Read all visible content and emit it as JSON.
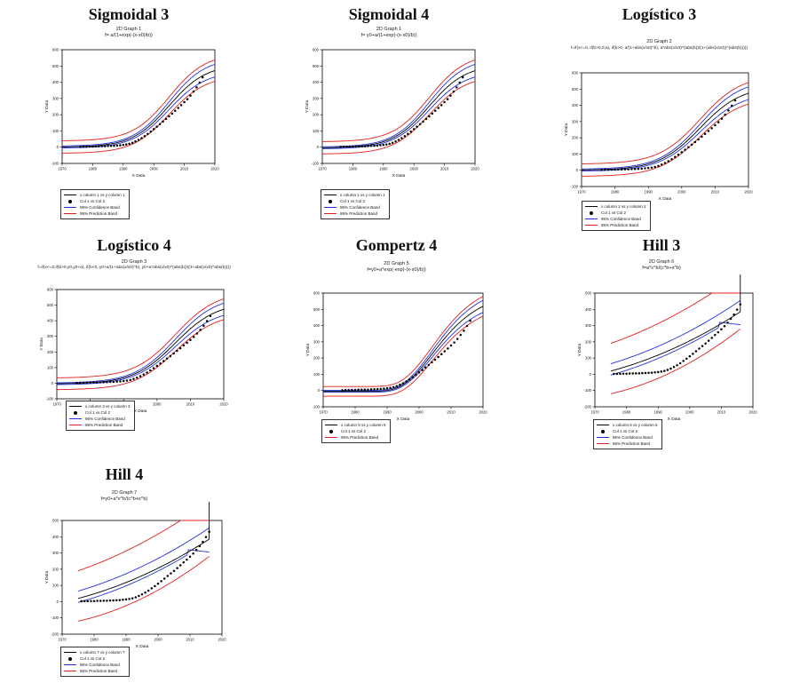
{
  "legend_labels": [
    "x column 1 vs y column 1",
    "Col 1 vs Col 2",
    "95% Confidence Band",
    "95% Prediction Band"
  ],
  "colors": {
    "fit": "#000000",
    "data": "#000000",
    "confidence": "#2233dd",
    "prediction": "#e02020",
    "frame": "#000000"
  },
  "chart_data": [
    {
      "type": "scatter",
      "title": "Sigmoidal 3",
      "graph_title": "2D Graph 1",
      "equation": "f= a/(1+exp(-(x-x0)/b))",
      "xlabel": "X Data",
      "ylabel": "Y Data",
      "xlim": [
        1970,
        2020
      ],
      "ylim": [
        -100,
        600
      ],
      "xticks": [
        1970,
        1980,
        1990,
        2000,
        2010,
        2020
      ],
      "yticks": [
        -100,
        0,
        100,
        200,
        300,
        400,
        500,
        600
      ],
      "model": {
        "kind": "sig3",
        "a": 510,
        "x0": 2005,
        "b": 6
      },
      "conf_halfwidth": 0.07,
      "pred_halfwidth": 38,
      "legend": [
        "x column 1 vs y column 1",
        "Col 1 vs Col 2",
        "95% Confidence Band",
        "95% Prediction Band"
      ]
    },
    {
      "type": "scatter",
      "title": "Sigmoidal 4",
      "graph_title": "2D Graph 1",
      "equation": "f= y0+a/(1+exp(-(x-x0)/b))",
      "xlabel": "X Data",
      "ylabel": "Y Data",
      "xlim": [
        1970,
        2020
      ],
      "ylim": [
        -100,
        600
      ],
      "xticks": [
        1970,
        1980,
        1990,
        2000,
        2010,
        2020
      ],
      "yticks": [
        -100,
        0,
        100,
        200,
        300,
        400,
        500,
        600
      ],
      "model": {
        "kind": "sig4",
        "y0": -5,
        "a": 515,
        "x0": 2005,
        "b": 6
      },
      "conf_halfwidth": 0.07,
      "pred_halfwidth": 38,
      "legend": [
        "x column 1 vs y column 1",
        "Col 1 vs Col 2",
        "95% Confidence Band",
        "95% Prediction Band"
      ]
    },
    {
      "type": "scatter",
      "title": "Logístico 3",
      "graph_title": "2D Graph 2",
      "equation": "f=if(x<=0, if(b>0,0,a), if(b>0, a/(1+abs(x/x0)^b), a*abs(x/x0)^(abs(b))/(1+(abs(x/x0))^(abs(b)))))",
      "xlabel": "X Data",
      "ylabel": "Y Data",
      "xlim": [
        1970,
        2020
      ],
      "ylim": [
        -100,
        600
      ],
      "xticks": [
        1970,
        1980,
        1990,
        2000,
        2010,
        2020
      ],
      "yticks": [
        -100,
        0,
        100,
        200,
        300,
        400,
        500,
        600
      ],
      "model": {
        "kind": "sig3",
        "a": 520,
        "x0": 2005.5,
        "b": 6.2
      },
      "conf_halfwidth": 0.07,
      "pred_halfwidth": 38,
      "legend": [
        "x column 2 vs y column 2",
        "Col 1 vs Col 2",
        "95% Confidence Band",
        "95% Prediction Band"
      ]
    },
    {
      "type": "scatter",
      "title": "Logístico 4",
      "graph_title": "2D Graph 3",
      "equation": "f=if(x<=0,if(b>0,y0,y0+a), if(b<0, y0+a/(1+abs(x/x0)^b), y0+a*abs(x/x0)^(abs(b))/(1+abs(x/x0)^abs(b))))",
      "xlabel": "X Data",
      "ylabel": "Y Data",
      "xlim": [
        1970,
        2020
      ],
      "ylim": [
        -100,
        600
      ],
      "xticks": [
        1970,
        1980,
        1990,
        2000,
        2010,
        2020
      ],
      "yticks": [
        -100,
        0,
        100,
        200,
        300,
        400,
        500,
        600
      ],
      "model": {
        "kind": "sig4",
        "y0": -5,
        "a": 525,
        "x0": 2005.5,
        "b": 6.2
      },
      "conf_halfwidth": 0.07,
      "pred_halfwidth": 38,
      "legend": [
        "x column 3 vs y column 3",
        "Col 1 vs Col 2",
        "95% Confidence Band",
        "95% Prediction Band"
      ]
    },
    {
      "type": "scatter",
      "title": "Gompertz 4",
      "graph_title": "2D Graph 5",
      "equation": "f=y0+a*exp(-exp(-(x-x0)/b))",
      "xlabel": "X Data",
      "ylabel": "Y Data",
      "xlim": [
        1970,
        2020
      ],
      "ylim": [
        -100,
        600
      ],
      "xticks": [
        1970,
        1980,
        1990,
        2000,
        2010,
        2020
      ],
      "yticks": [
        -100,
        0,
        100,
        200,
        300,
        400,
        500,
        600
      ],
      "model": {
        "kind": "gomp",
        "y0": -5,
        "a": 620,
        "x0": 2004,
        "b": 9
      },
      "conf_halfwidth": 0.06,
      "pred_halfwidth": 30,
      "legend": [
        "x column 5 vs y column 5",
        "Col 1 vs Col 2",
        "95% Prediction Band"
      ]
    },
    {
      "type": "scatter",
      "title": "Hill 3",
      "graph_title": "2D Graph 6",
      "equation": "f=a*x^b/(c^b+x^b)",
      "xlabel": "X Data",
      "ylabel": "Y Data",
      "xlim": [
        1970,
        2020
      ],
      "ylim": [
        -200,
        500
      ],
      "xticks": [
        1970,
        1980,
        1990,
        2000,
        2010,
        2020
      ],
      "yticks": [
        -200,
        -100,
        0,
        100,
        200,
        300,
        400,
        500
      ],
      "model": {
        "kind": "hill"
      },
      "legend": [
        "x column 6 vs y column 6",
        "Col 1 vs Col 2",
        "95% Confidence Band",
        "95% Prediction Band"
      ]
    },
    {
      "type": "scatter",
      "title": "Hill 4",
      "graph_title": "2D Graph 7",
      "equation": "f=y0+a*x^b/(c^b+x^b)",
      "xlabel": "X Data",
      "ylabel": "Y Data",
      "xlim": [
        1970,
        2020
      ],
      "ylim": [
        -200,
        500
      ],
      "xticks": [
        1970,
        1980,
        1990,
        2000,
        2010,
        2020
      ],
      "yticks": [
        -200,
        -100,
        0,
        100,
        200,
        300,
        400,
        500
      ],
      "model": {
        "kind": "hill"
      },
      "legend": [
        "x column 7 vs y column 7",
        "Col 1 vs Col 2",
        "95% Confidence Band",
        "95% Prediction Band"
      ]
    }
  ],
  "observed": {
    "x": [
      1976,
      1977,
      1978,
      1979,
      1980,
      1981,
      1982,
      1983,
      1984,
      1985,
      1986,
      1987,
      1988,
      1989,
      1990,
      1991,
      1992,
      1993,
      1994,
      1995,
      1996,
      1997,
      1998,
      1999,
      2000,
      2001,
      2002,
      2003,
      2004,
      2005,
      2006,
      2007,
      2008,
      2009,
      2010,
      2011,
      2012,
      2013,
      2014,
      2015,
      2016
    ],
    "y": [
      2,
      3,
      3,
      4,
      4,
      5,
      5,
      6,
      6,
      7,
      8,
      9,
      10,
      12,
      14,
      17,
      21,
      27,
      35,
      45,
      56,
      68,
      82,
      96,
      111,
      126,
      142,
      158,
      174,
      190,
      207,
      224,
      242,
      259,
      277,
      296,
      318,
      342,
      368,
      398,
      430
    ]
  }
}
